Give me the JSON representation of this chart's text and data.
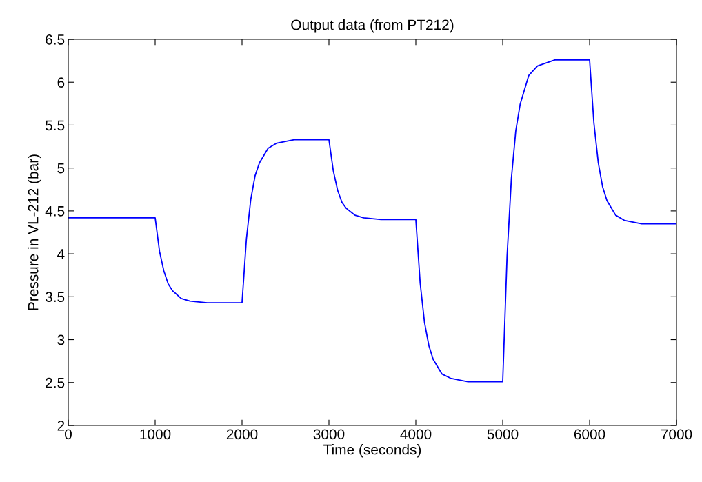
{
  "chart_data": {
    "type": "line",
    "title": "Output data (from PT212)",
    "xlabel": "Time (seconds)",
    "ylabel": "Pressure in VL-212 (bar)",
    "series": [
      {
        "color": "#0000ff",
        "x": [
          0,
          1000,
          1050,
          1100,
          1150,
          1200,
          1300,
          1400,
          1600,
          2000,
          2050,
          2100,
          2150,
          2200,
          2300,
          2400,
          2600,
          3000,
          3050,
          3100,
          3150,
          3200,
          3300,
          3400,
          3600,
          4000,
          4050,
          4100,
          4150,
          4200,
          4300,
          4400,
          4600,
          5000,
          5050,
          5100,
          5150,
          5200,
          5300,
          5400,
          5600,
          6000,
          6050,
          6100,
          6150,
          6200,
          6300,
          6400,
          6600,
          7000
        ],
        "values": [
          4.42,
          4.42,
          4.03,
          3.8,
          3.65,
          3.57,
          3.48,
          3.45,
          3.43,
          3.43,
          4.17,
          4.63,
          4.91,
          5.06,
          5.23,
          5.29,
          5.33,
          5.33,
          4.97,
          4.74,
          4.6,
          4.53,
          4.45,
          4.42,
          4.4,
          4.4,
          3.66,
          3.2,
          2.93,
          2.77,
          2.6,
          2.55,
          2.51,
          2.51,
          3.97,
          4.88,
          5.43,
          5.74,
          6.08,
          6.19,
          6.26,
          6.26,
          5.52,
          5.06,
          4.78,
          4.62,
          4.45,
          4.39,
          4.35,
          4.35
        ]
      }
    ],
    "xlim": [
      0,
      7000
    ],
    "xticks": [
      0,
      1000,
      2000,
      3000,
      4000,
      5000,
      6000,
      7000
    ],
    "ylim": [
      2,
      6.5
    ],
    "yticks": [
      2,
      2.5,
      3,
      3.5,
      4,
      4.5,
      5,
      5.5,
      6,
      6.5
    ],
    "grid": false,
    "marker": "none",
    "line_style": "solid"
  }
}
